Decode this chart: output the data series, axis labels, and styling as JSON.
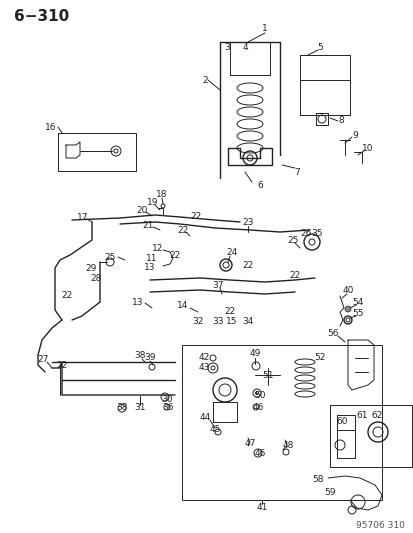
{
  "title": "6−310",
  "watermark": "95706 310",
  "bg_color": "#ffffff",
  "fig_width": 4.14,
  "fig_height": 5.33,
  "dpi": 100,
  "title_fontsize": 11,
  "label_fontsize": 6.5,
  "watermark_fontsize": 6.5
}
